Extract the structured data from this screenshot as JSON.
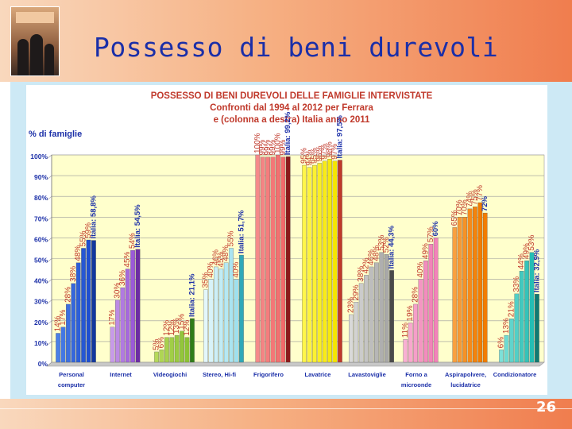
{
  "slide": {
    "title": "Possesso di beni durevoli",
    "page_number": "26"
  },
  "chart_data": {
    "type": "bar",
    "title_lines": [
      "POSSESSO DI BENI DUREVOLI DELLE FAMIGLIE INTERVISTATE",
      "Confronti dal 1994 al 2012 per Ferrara",
      "e (colonna a destra) Italia anno 2011"
    ],
    "ylabel": "% di famiglie",
    "ylim": [
      0,
      100
    ],
    "yticks": [
      "0%",
      "10%",
      "20%",
      "30%",
      "40%",
      "50%",
      "60%",
      "70%",
      "80%",
      "90%",
      "100%"
    ],
    "grid": true,
    "groups": [
      {
        "name": "Personal computer",
        "label_lines": [
          "Personal",
          "computer"
        ],
        "bars": [
          {
            "v": 14,
            "label": "14%"
          },
          {
            "v": 17,
            "label": "17%"
          },
          {
            "v": 28,
            "label": "28%"
          },
          {
            "v": 38,
            "label": "38%"
          },
          {
            "v": 48,
            "label": "48%"
          },
          {
            "v": 55,
            "label": "55%"
          },
          {
            "v": 59,
            "label": "59%"
          }
        ],
        "italia": {
          "v": 58.8,
          "label": "Italia: 58,8%"
        },
        "colors": [
          "#4a7fe8",
          "#1f4fd0",
          "#12389e"
        ]
      },
      {
        "name": "Internet",
        "label_lines": [
          "Internet"
        ],
        "bars": [
          {
            "v": 17,
            "label": "17%"
          },
          {
            "v": 30,
            "label": "30%"
          },
          {
            "v": 36,
            "label": "36%"
          },
          {
            "v": 45,
            "label": "45%"
          },
          {
            "v": 54,
            "label": "54%"
          }
        ],
        "italia": {
          "v": 54.5,
          "label": "Italia: 54,5%"
        },
        "colors": [
          "#c79ae8",
          "#9b59d9",
          "#6c2da3"
        ]
      },
      {
        "name": "Videogiochi",
        "label_lines": [
          "Videogiochi"
        ],
        "bars": [
          {
            "v": 5,
            "label": "5%"
          },
          {
            "v": 6,
            "label": "6%"
          },
          {
            "v": 12,
            "label": "12%"
          },
          {
            "v": 12,
            "label": "12%"
          },
          {
            "v": 13,
            "label": "13%"
          },
          {
            "v": 15,
            "label": "15%"
          },
          {
            "v": 12,
            "label": "12%"
          }
        ],
        "italia": {
          "v": 21.1,
          "label": "Italia: 21,1%"
        },
        "colors": [
          "#b6d95a",
          "#8cc234",
          "#2f7d18"
        ]
      },
      {
        "name": "Stereo, Hi-fi",
        "label_lines": [
          "Stereo, Hi-fi"
        ],
        "bars": [
          {
            "v": 35,
            "label": "35%"
          },
          {
            "v": 40,
            "label": "40%"
          },
          {
            "v": 46,
            "label": "46%"
          },
          {
            "v": 45,
            "label": "45%"
          },
          {
            "v": 48,
            "label": "48%"
          },
          {
            "v": 55,
            "label": "55%"
          },
          {
            "v": 40,
            "label": "40%"
          }
        ],
        "italia": {
          "v": 51.7,
          "label": "Italia: 51,7%"
        },
        "colors": [
          "#e3f7fb",
          "#9ee0ef",
          "#2fa8b8"
        ]
      },
      {
        "name": "Frigorifero",
        "label_lines": [
          "Frigorifero"
        ],
        "bars": [
          {
            "v": 100,
            "label": "100%"
          },
          {
            "v": 99,
            "label": "99%"
          },
          {
            "v": 99,
            "label": "99%"
          },
          {
            "v": 99,
            "label": "99%"
          },
          {
            "v": 100,
            "label": "100%"
          },
          {
            "v": 99,
            "label": "99%"
          }
        ],
        "italia": {
          "v": 99.2,
          "label": "Italia: 99,2%"
        },
        "colors": [
          "#f58a8a",
          "#f26a6a",
          "#8b1a1a"
        ]
      },
      {
        "name": "Lavatrice",
        "label_lines": [
          "Lavatrice"
        ],
        "bars": [
          {
            "v": 95,
            "label": "95%"
          },
          {
            "v": 94,
            "label": "94%"
          },
          {
            "v": 95,
            "label": "95%"
          },
          {
            "v": 96,
            "label": "96%"
          },
          {
            "v": 97,
            "label": "97%"
          },
          {
            "v": 98,
            "label": "98%"
          },
          {
            "v": 97,
            "label": "97%"
          }
        ],
        "italia": {
          "v": 97.5,
          "label": "Italia: 97,5%"
        },
        "colors": [
          "#fff64a",
          "#f5e600",
          "#c0392b"
        ]
      },
      {
        "name": "Lavastoviglie",
        "label_lines": [
          "Lavastoviglie"
        ],
        "bars": [
          {
            "v": 23,
            "label": "23%"
          },
          {
            "v": 29,
            "label": "29%"
          },
          {
            "v": 38,
            "label": "38%"
          },
          {
            "v": 42,
            "label": "42%"
          },
          {
            "v": 46,
            "label": "46%"
          },
          {
            "v": 48,
            "label": "48%"
          },
          {
            "v": 53,
            "label": "53%"
          },
          {
            "v": 52,
            "label": "52%"
          }
        ],
        "italia": {
          "v": 44.3,
          "label": "Italia: 44,3%"
        },
        "colors": [
          "#d9d9d9",
          "#a8a8a8",
          "#4a4a4a"
        ]
      },
      {
        "name": "Forno a microonde",
        "label_lines": [
          "Forno a",
          "microonde"
        ],
        "bars": [
          {
            "v": 11,
            "label": "11%"
          },
          {
            "v": 19,
            "label": "19%"
          },
          {
            "v": 28,
            "label": "28%"
          },
          {
            "v": 40,
            "label": "40%"
          },
          {
            "v": 49,
            "label": "49%"
          },
          {
            "v": 57,
            "label": "57%"
          }
        ],
        "italia": {
          "v": 60,
          "label": "60%"
        },
        "colors": [
          "#f9b0d3",
          "#f283b9",
          "#f283b9"
        ]
      },
      {
        "name": "Aspirapolvere, lucidatrice",
        "label_lines": [
          "Aspirapolvere,",
          "lucidatrice"
        ],
        "bars": [
          {
            "v": 65,
            "label": "65%"
          },
          {
            "v": 70,
            "label": "70%"
          },
          {
            "v": 70,
            "label": "70%"
          },
          {
            "v": 74,
            "label": "74%"
          },
          {
            "v": 75,
            "label": "75%"
          },
          {
            "v": 77,
            "label": "77%"
          }
        ],
        "italia": {
          "v": 72,
          "label": "72%"
        },
        "colors": [
          "#f9a040",
          "#f27c00",
          "#f27c00"
        ]
      },
      {
        "name": "Condizionatore",
        "label_lines": [
          "Condizionatore"
        ],
        "bars": [
          {
            "v": 6,
            "label": "6%"
          },
          {
            "v": 13,
            "label": "13%"
          },
          {
            "v": 21,
            "label": "21%"
          },
          {
            "v": 33,
            "label": "33%"
          },
          {
            "v": 44,
            "label": "44%"
          },
          {
            "v": 49,
            "label": "49%"
          },
          {
            "v": 53,
            "label": "53%"
          }
        ],
        "italia": {
          "v": 32.9,
          "label": "Italia: 32,9%"
        },
        "colors": [
          "#7de0d8",
          "#25bdb3",
          "#0f7a73"
        ]
      }
    ]
  }
}
